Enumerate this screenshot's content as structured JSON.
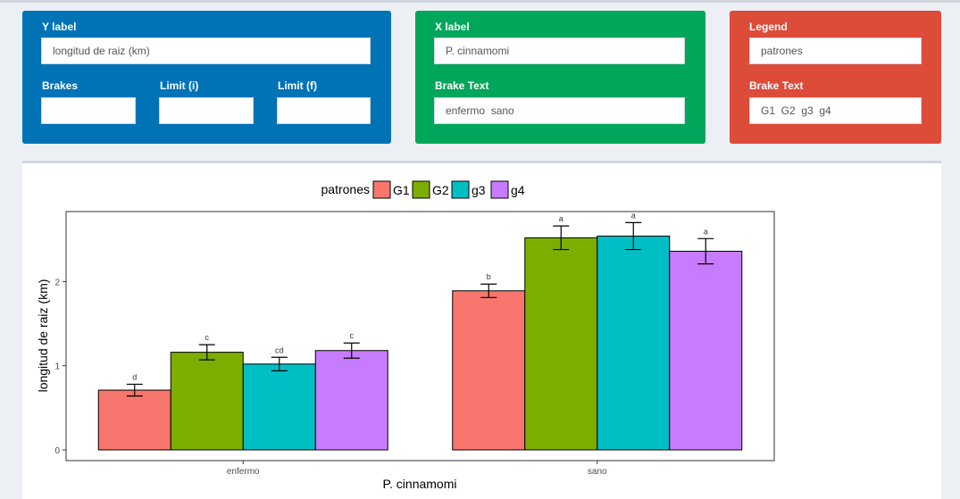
{
  "panels": {
    "y": {
      "title": "Y label",
      "value": "longitud de raiz (km)",
      "brakes_label": "Brakes",
      "brakes_value": "",
      "limit_i_label": "Limit (i)",
      "limit_i_value": "",
      "limit_f_label": "Limit (f)",
      "limit_f_value": ""
    },
    "x": {
      "title": "X label",
      "value": "P. cinnamomi",
      "brake_text_label": "Brake Text",
      "brake_text_value": "enfermo  sano"
    },
    "legend": {
      "title": "Legend",
      "value": "patrones",
      "brake_text_label": "Brake Text",
      "brake_text_value": "G1  G2  g3  g4"
    }
  },
  "colors": {
    "blue": "#0073b7",
    "green": "#00a65a",
    "red": "#dd4b39",
    "series": [
      "#F8766D",
      "#7CAE00",
      "#00BFC4",
      "#C77CFF"
    ]
  },
  "chart_data": {
    "type": "bar",
    "xlabel": "P. cinnamomi",
    "ylabel": "longitud de raiz (km)",
    "legend_title": "patrones",
    "legend_position": "top",
    "categories": [
      "enfermo",
      "sano"
    ],
    "ylim": [
      0,
      2.6
    ],
    "yticks": [
      0,
      1,
      2
    ],
    "grid": false,
    "series": [
      {
        "name": "G1",
        "values": [
          0.71,
          1.89
        ],
        "errors": [
          0.07,
          0.08
        ],
        "letters": [
          "d",
          "b"
        ]
      },
      {
        "name": "G2",
        "values": [
          1.16,
          2.52
        ],
        "errors": [
          0.09,
          0.14
        ],
        "letters": [
          "c",
          "a"
        ]
      },
      {
        "name": "g3",
        "values": [
          1.02,
          2.54
        ],
        "errors": [
          0.08,
          0.16
        ],
        "letters": [
          "cd",
          "a"
        ]
      },
      {
        "name": "g4",
        "values": [
          1.18,
          2.36
        ],
        "errors": [
          0.09,
          0.15
        ],
        "letters": [
          "c",
          "a"
        ]
      }
    ]
  }
}
